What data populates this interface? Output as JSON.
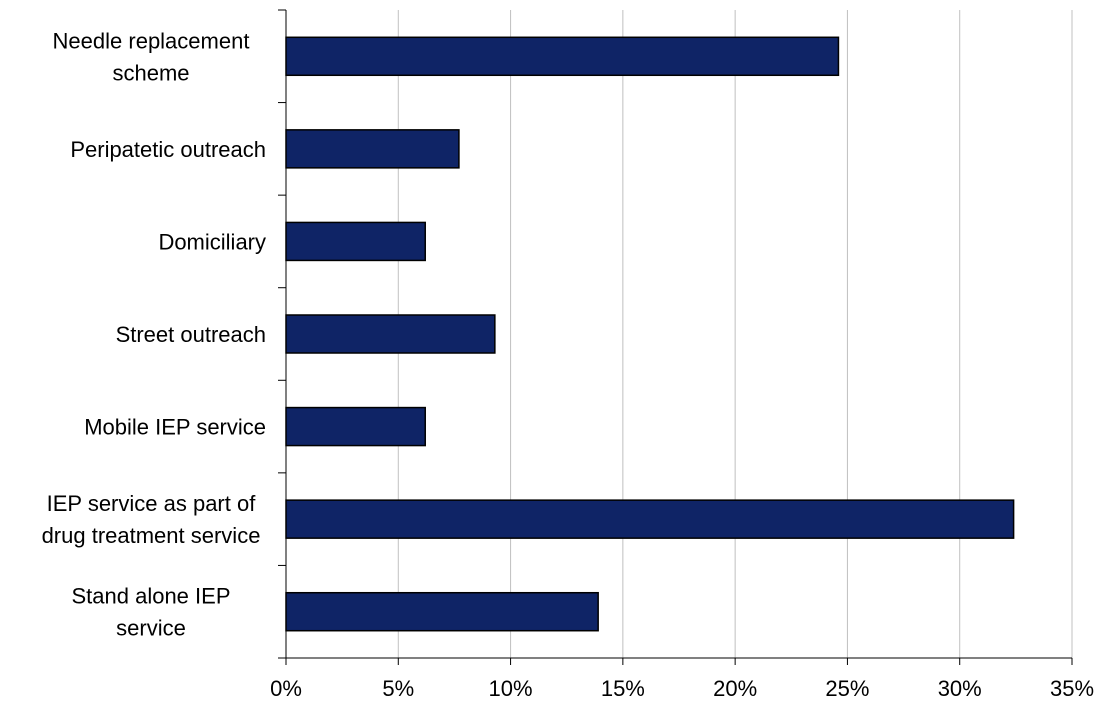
{
  "chart_data": {
    "type": "bar",
    "orientation": "horizontal",
    "categories": [
      [
        "Needle replacement",
        "scheme"
      ],
      [
        "Peripatetic outreach"
      ],
      [
        "Domiciliary"
      ],
      [
        "Street outreach"
      ],
      [
        "Mobile IEP service"
      ],
      [
        "IEP service as part of",
        "drug treatment service"
      ],
      [
        "Stand alone IEP",
        "service"
      ]
    ],
    "values": [
      24.6,
      7.7,
      6.2,
      9.3,
      6.2,
      32.4,
      13.9
    ],
    "xlim": [
      0,
      35
    ],
    "xticks": [
      0,
      5,
      10,
      15,
      20,
      25,
      30,
      35
    ],
    "xtick_labels": [
      "0%",
      "5%",
      "10%",
      "15%",
      "20%",
      "25%",
      "30%",
      "35%"
    ],
    "title": "",
    "xlabel": "",
    "ylabel": "",
    "grid": "vertical",
    "legend": "none",
    "colors": {
      "bar_fill": "#0f2466",
      "bar_stroke": "#000000",
      "grid": "#c0c0c0",
      "axis": "#000000"
    }
  }
}
